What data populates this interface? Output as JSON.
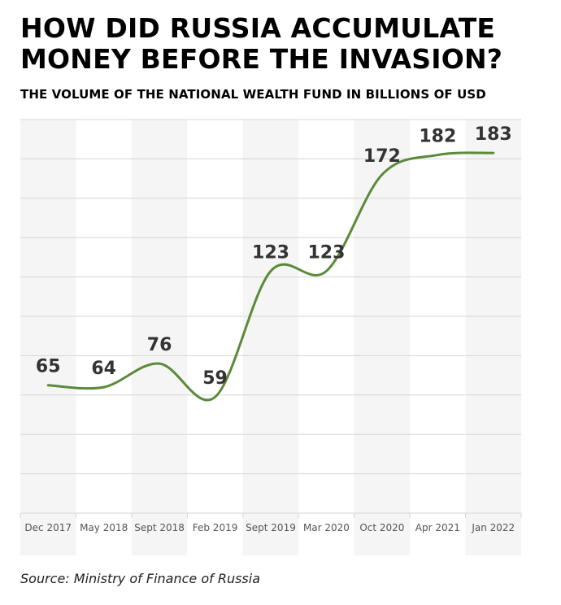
{
  "chart_data": {
    "type": "line",
    "title": "HOW DID RUSSIA ACCUMULATE MONEY BEFORE THE INVASION?",
    "subtitle": "THE VOLUME OF THE NATIONAL WEALTH FUND IN BILLIONS OF USD",
    "xlabel": "",
    "ylabel": "",
    "categories": [
      "Dec 2017",
      "May 2018",
      "Sept 2018",
      "Feb 2019",
      "Sept 2019",
      "Mar 2020",
      "Oct 2020",
      "Apr 2021",
      "Jan 2022"
    ],
    "series": [
      {
        "name": "National Wealth Fund (billions USD)",
        "values": [
          65,
          64,
          76,
          59,
          123,
          123,
          172,
          182,
          183
        ],
        "color": "#5a8a3a"
      }
    ],
    "data_labels": [
      "65",
      "64",
      "76",
      "59",
      "123",
      "123",
      "172",
      "182",
      "183"
    ],
    "ylim": [
      0,
      200
    ],
    "y_gridlines": [
      0,
      20,
      40,
      60,
      80,
      100,
      120,
      140,
      160,
      180,
      200
    ],
    "y_tick_labels_shown": false,
    "grid": true,
    "legend": "none",
    "band_color": "#f5f5f5",
    "grid_color": "#d6d6d6",
    "source": "Source: Ministry of Finance of Russia"
  }
}
